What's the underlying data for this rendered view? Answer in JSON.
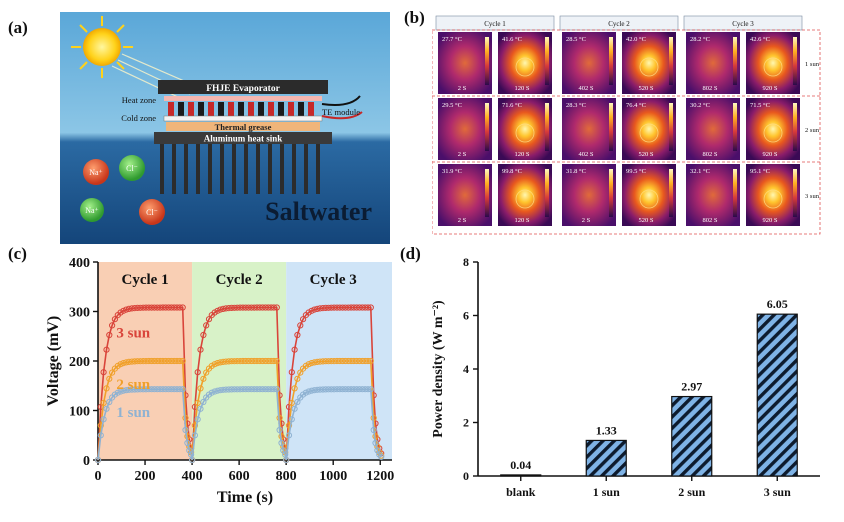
{
  "panels": {
    "a": {
      "label": "(a)"
    },
    "b": {
      "label": "(b)"
    },
    "c": {
      "label": "(c)"
    },
    "d": {
      "label": "(d)"
    }
  },
  "schematic": {
    "evaporator": "FHJE Evaporator",
    "heat_zone": "Heat zone",
    "cold_zone": "Cold zone",
    "te_module": "TE module",
    "thermal_grease": "Thermal grease",
    "heat_sink": "Aluminum heat sink",
    "water_label": "Saltwater",
    "ion_labels": [
      "Na⁺",
      "Cl⁻",
      "Na⁺",
      "Cl⁻"
    ]
  },
  "thermal": {
    "cycles": [
      "Cycle 1",
      "Cycle 2",
      "Cycle 3"
    ],
    "suns": [
      "1 sun",
      "2 sun",
      "3 sun"
    ],
    "rows": [
      [
        {
          "temp": "27.7 °C",
          "time": "2 S"
        },
        {
          "temp": "41.6 °C",
          "time": "120 S"
        },
        {
          "temp": "28.5 °C",
          "time": "402 S"
        },
        {
          "temp": "42.0 °C",
          "time": "520 S"
        },
        {
          "temp": "28.2 °C",
          "time": "802 S"
        },
        {
          "temp": "42.6 °C",
          "time": "920 S"
        }
      ],
      [
        {
          "temp": "29.5 °C",
          "time": "2 S"
        },
        {
          "temp": "71.6 °C",
          "time": "120 S"
        },
        {
          "temp": "28.3 °C",
          "time": "402 S"
        },
        {
          "temp": "76.4 °C",
          "time": "520 S"
        },
        {
          "temp": "30.2 °C",
          "time": "802 S"
        },
        {
          "temp": "71.5 °C",
          "time": "920 S"
        }
      ],
      [
        {
          "temp": "31.9 °C",
          "time": "2 S"
        },
        {
          "temp": "99.8 °C",
          "time": "120 S"
        },
        {
          "temp": "31.8 °C",
          "time": "2 S"
        },
        {
          "temp": "99.5 °C",
          "time": "520 S"
        },
        {
          "temp": "32.1 °C",
          "time": "802 S"
        },
        {
          "temp": "95.1 °C",
          "time": "920 S"
        }
      ]
    ]
  },
  "chart_data": [
    {
      "type": "line",
      "xlabel": "Time (s)",
      "ylabel": "Voltage (mV)",
      "xlim": [
        0,
        1250
      ],
      "ylim": [
        0,
        400
      ],
      "xticks": [
        0,
        200,
        400,
        600,
        800,
        1000,
        1200
      ],
      "yticks": [
        0,
        100,
        200,
        300,
        400
      ],
      "cycle_regions": [
        {
          "name": "Cycle 1",
          "x": [
            0,
            400
          ],
          "color": "#f9cfb4"
        },
        {
          "name": "Cycle 2",
          "x": [
            400,
            800
          ],
          "color": "#d8f2c8"
        },
        {
          "name": "Cycle 3",
          "x": [
            800,
            1250
          ],
          "color": "#cfe4f7"
        }
      ],
      "series": [
        {
          "name": "3 sun",
          "color": "#d9443a",
          "plateau": 308
        },
        {
          "name": "2 sun",
          "color": "#f0a02a",
          "plateau": 200
        },
        {
          "name": "1 sun",
          "color": "#8fb2d2",
          "plateau": 143
        }
      ],
      "grid": false
    },
    {
      "type": "bar",
      "categories": [
        "blank",
        "1 sun",
        "2 sun",
        "3 sun"
      ],
      "values": [
        0.04,
        1.33,
        2.97,
        6.05
      ],
      "value_labels": [
        "0.04",
        "1.33",
        "2.97",
        "6.05"
      ],
      "xlabel": "",
      "ylabel": "Power density (W m⁻²)",
      "ylim": [
        0,
        8
      ],
      "yticks": [
        0,
        2,
        4,
        6,
        8
      ],
      "bar_color": "#7fb3e6",
      "grid": false
    }
  ]
}
